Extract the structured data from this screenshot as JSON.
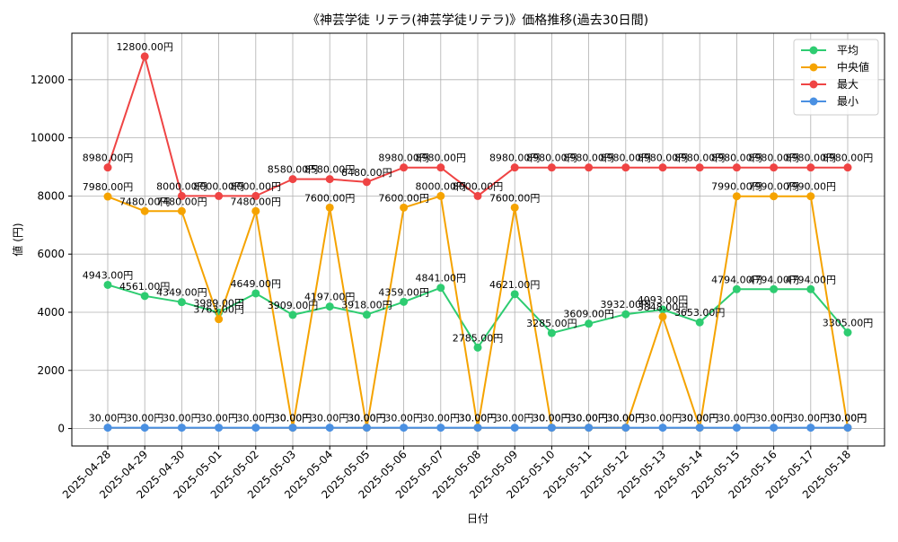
{
  "chart_data": {
    "type": "line",
    "title": "《神芸学徒 リテラ(神芸学徒リテラ)》価格推移(過去30日間)",
    "xlabel": "日付",
    "ylabel": "値 (円)",
    "ylim": [
      -600,
      13600
    ],
    "yticks": [
      0,
      2000,
      4000,
      6000,
      8000,
      10000,
      12000
    ],
    "grid": true,
    "legend_position": "top-right",
    "label_suffix": "円",
    "categories": [
      "2025-04-28",
      "2025-04-29",
      "2025-04-30",
      "2025-05-01",
      "2025-05-02",
      "2025-05-03",
      "2025-05-04",
      "2025-05-05",
      "2025-05-06",
      "2025-05-07",
      "2025-05-08",
      "2025-05-09",
      "2025-05-10",
      "2025-05-11",
      "2025-05-12",
      "2025-05-13",
      "2025-05-14",
      "2025-05-15",
      "2025-05-16",
      "2025-05-17",
      "2025-05-18"
    ],
    "series": [
      {
        "name": "平均",
        "color": "#2ecc71",
        "values": [
          4943,
          4561,
          4349,
          3989,
          4649,
          3909,
          4197,
          3918,
          4359,
          4841,
          2785,
          4621,
          3285,
          3609,
          3932,
          4093,
          3653,
          4794,
          4794,
          4794,
          3305
        ]
      },
      {
        "name": "中央値",
        "color": "#f5a300",
        "values": [
          7980,
          7480,
          7480,
          3763,
          7480,
          30,
          7600,
          30,
          7600,
          8000,
          30,
          7600,
          30,
          30,
          30,
          3848,
          30,
          7990,
          7990,
          7990,
          30
        ]
      },
      {
        "name": "最大",
        "color": "#ef4444",
        "values": [
          8980,
          12800,
          8000,
          8000,
          8000,
          8580,
          8580,
          8480,
          8980,
          8980,
          8000,
          8980,
          8980,
          8980,
          8980,
          8980,
          8980,
          8980,
          8980,
          8980,
          8980
        ]
      },
      {
        "name": "最小",
        "color": "#4a90e2",
        "values": [
          30,
          30,
          30,
          30,
          30,
          30,
          30,
          30,
          30,
          30,
          30,
          30,
          30,
          30,
          30,
          30,
          30,
          30,
          30,
          30,
          30
        ]
      }
    ]
  }
}
